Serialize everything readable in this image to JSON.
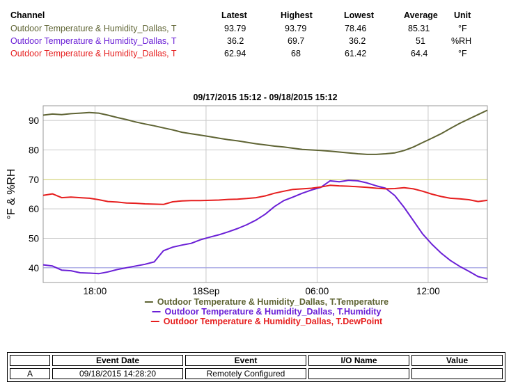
{
  "summary": {
    "headers": {
      "channel": "Channel",
      "latest": "Latest",
      "highest": "Highest",
      "lowest": "Lowest",
      "average": "Average",
      "unit": "Unit"
    },
    "rows": [
      {
        "channel": "Outdoor Temperature & Humidity_Dallas, T",
        "latest": "93.79",
        "highest": "93.79",
        "lowest": "78.46",
        "average": "85.31",
        "unit": "°F",
        "color": "#5f6434"
      },
      {
        "channel": "Outdoor Temperature & Humidity_Dallas, T",
        "latest": "36.2",
        "highest": "69.7",
        "lowest": "36.2",
        "average": "51",
        "unit": "%RH",
        "color": "#6a1fd6"
      },
      {
        "channel": "Outdoor Temperature & Humidity_Dallas, T",
        "latest": "62.94",
        "highest": "68",
        "lowest": "61.42",
        "average": "64.4",
        "unit": "°F",
        "color": "#e61e1e"
      }
    ]
  },
  "chart_data": {
    "type": "line",
    "title": "09/17/2015 15:12 - 09/18/2015 15:12",
    "ylabel": "°F & %RH",
    "xlabel": "",
    "xlim": [
      15.2,
      39.2
    ],
    "ylim": [
      35,
      95
    ],
    "yticks": [
      40,
      50,
      60,
      70,
      80,
      90
    ],
    "xticks": [
      {
        "x": 18,
        "label": "18:00"
      },
      {
        "x": 24,
        "label": "18Sep"
      },
      {
        "x": 30,
        "label": "06:00"
      },
      {
        "x": 36,
        "label": "12:00"
      }
    ],
    "reference_lines": [
      {
        "y": 70,
        "color": "#d8d87a"
      },
      {
        "y": 40,
        "color": "#9e9ee6"
      }
    ],
    "series": [
      {
        "name": "Outdoor Temperature & Humidity_Dallas, T.Temperature",
        "color": "#5f6434",
        "points": [
          [
            15.2,
            91.8
          ],
          [
            15.7,
            92.2
          ],
          [
            16.2,
            92.0
          ],
          [
            16.7,
            92.3
          ],
          [
            17.2,
            92.5
          ],
          [
            17.7,
            92.7
          ],
          [
            18.2,
            92.5
          ],
          [
            18.7,
            91.8
          ],
          [
            19.2,
            91.0
          ],
          [
            19.7,
            90.3
          ],
          [
            20.2,
            89.5
          ],
          [
            20.7,
            88.8
          ],
          [
            21.2,
            88.2
          ],
          [
            21.7,
            87.5
          ],
          [
            22.2,
            86.8
          ],
          [
            22.7,
            86.0
          ],
          [
            23.2,
            85.5
          ],
          [
            23.7,
            85.0
          ],
          [
            24.2,
            84.5
          ],
          [
            24.7,
            84.0
          ],
          [
            25.2,
            83.5
          ],
          [
            25.7,
            83.1
          ],
          [
            26.2,
            82.6
          ],
          [
            26.7,
            82.1
          ],
          [
            27.2,
            81.7
          ],
          [
            27.7,
            81.3
          ],
          [
            28.2,
            81.0
          ],
          [
            28.7,
            80.6
          ],
          [
            29.2,
            80.2
          ],
          [
            29.7,
            80.0
          ],
          [
            30.2,
            79.8
          ],
          [
            30.7,
            79.6
          ],
          [
            31.2,
            79.3
          ],
          [
            31.7,
            79.0
          ],
          [
            32.2,
            78.7
          ],
          [
            32.7,
            78.5
          ],
          [
            33.2,
            78.5
          ],
          [
            33.7,
            78.7
          ],
          [
            34.2,
            79.0
          ],
          [
            34.7,
            79.8
          ],
          [
            35.2,
            81.0
          ],
          [
            35.7,
            82.5
          ],
          [
            36.2,
            84.0
          ],
          [
            36.7,
            85.5
          ],
          [
            37.2,
            87.3
          ],
          [
            37.7,
            89.0
          ],
          [
            38.2,
            90.5
          ],
          [
            38.7,
            92.0
          ],
          [
            39.2,
            93.5
          ]
        ]
      },
      {
        "name": "Outdoor Temperature & Humidity_Dallas, T.Humidity",
        "color": "#6a1fd6",
        "points": [
          [
            15.2,
            41.0
          ],
          [
            15.7,
            40.6
          ],
          [
            16.2,
            39.2
          ],
          [
            16.7,
            39.0
          ],
          [
            17.2,
            38.3
          ],
          [
            17.7,
            38.2
          ],
          [
            18.2,
            38.0
          ],
          [
            18.7,
            38.6
          ],
          [
            19.2,
            39.4
          ],
          [
            19.7,
            40.0
          ],
          [
            20.2,
            40.6
          ],
          [
            20.7,
            41.2
          ],
          [
            21.2,
            42.0
          ],
          [
            21.7,
            45.8
          ],
          [
            22.2,
            47.0
          ],
          [
            22.7,
            47.7
          ],
          [
            23.2,
            48.3
          ],
          [
            23.7,
            49.5
          ],
          [
            24.2,
            50.4
          ],
          [
            24.7,
            51.2
          ],
          [
            25.2,
            52.2
          ],
          [
            25.7,
            53.3
          ],
          [
            26.2,
            54.6
          ],
          [
            26.7,
            56.2
          ],
          [
            27.2,
            58.2
          ],
          [
            27.7,
            60.8
          ],
          [
            28.2,
            62.8
          ],
          [
            28.7,
            64.0
          ],
          [
            29.2,
            65.3
          ],
          [
            29.7,
            66.4
          ],
          [
            30.2,
            67.3
          ],
          [
            30.7,
            69.5
          ],
          [
            31.2,
            69.2
          ],
          [
            31.7,
            69.7
          ],
          [
            32.2,
            69.5
          ],
          [
            32.7,
            68.8
          ],
          [
            33.2,
            67.8
          ],
          [
            33.7,
            67.0
          ],
          [
            34.2,
            64.5
          ],
          [
            34.7,
            60.5
          ],
          [
            35.2,
            56.0
          ],
          [
            35.7,
            51.5
          ],
          [
            36.2,
            48.0
          ],
          [
            36.7,
            45.0
          ],
          [
            37.2,
            42.5
          ],
          [
            37.7,
            40.5
          ],
          [
            38.2,
            38.8
          ],
          [
            38.7,
            37.0
          ],
          [
            39.2,
            36.2
          ]
        ]
      },
      {
        "name": "Outdoor Temperature & Humidity_Dallas, T.DewPoint",
        "color": "#e61e1e",
        "points": [
          [
            15.2,
            64.6
          ],
          [
            15.7,
            65.1
          ],
          [
            16.2,
            63.8
          ],
          [
            16.7,
            64.0
          ],
          [
            17.2,
            63.8
          ],
          [
            17.7,
            63.6
          ],
          [
            18.2,
            63.1
          ],
          [
            18.7,
            62.5
          ],
          [
            19.2,
            62.3
          ],
          [
            19.7,
            62.0
          ],
          [
            20.2,
            61.9
          ],
          [
            20.7,
            61.7
          ],
          [
            21.2,
            61.6
          ],
          [
            21.7,
            61.5
          ],
          [
            22.2,
            62.4
          ],
          [
            22.7,
            62.7
          ],
          [
            23.2,
            62.8
          ],
          [
            23.7,
            62.8
          ],
          [
            24.2,
            62.9
          ],
          [
            24.7,
            63.0
          ],
          [
            25.2,
            63.2
          ],
          [
            25.7,
            63.3
          ],
          [
            26.2,
            63.5
          ],
          [
            26.7,
            63.8
          ],
          [
            27.2,
            64.4
          ],
          [
            27.7,
            65.3
          ],
          [
            28.2,
            66.0
          ],
          [
            28.7,
            66.6
          ],
          [
            29.2,
            66.8
          ],
          [
            29.7,
            67.0
          ],
          [
            30.2,
            67.4
          ],
          [
            30.7,
            68.0
          ],
          [
            31.2,
            67.8
          ],
          [
            31.7,
            67.7
          ],
          [
            32.2,
            67.5
          ],
          [
            32.7,
            67.3
          ],
          [
            33.2,
            67.0
          ],
          [
            33.7,
            66.8
          ],
          [
            34.2,
            66.9
          ],
          [
            34.7,
            67.2
          ],
          [
            35.2,
            66.8
          ],
          [
            35.7,
            66.0
          ],
          [
            36.2,
            65.0
          ],
          [
            36.7,
            64.2
          ],
          [
            37.2,
            63.6
          ],
          [
            37.7,
            63.4
          ],
          [
            38.2,
            63.1
          ],
          [
            38.7,
            62.5
          ],
          [
            39.2,
            62.9
          ]
        ]
      }
    ]
  },
  "events": {
    "headers": [
      "",
      "Event Date",
      "Event",
      "I/O Name",
      "Value"
    ],
    "rows": [
      [
        "A",
        "09/18/2015 14:28:20",
        "Remotely Configured",
        "",
        ""
      ]
    ]
  }
}
